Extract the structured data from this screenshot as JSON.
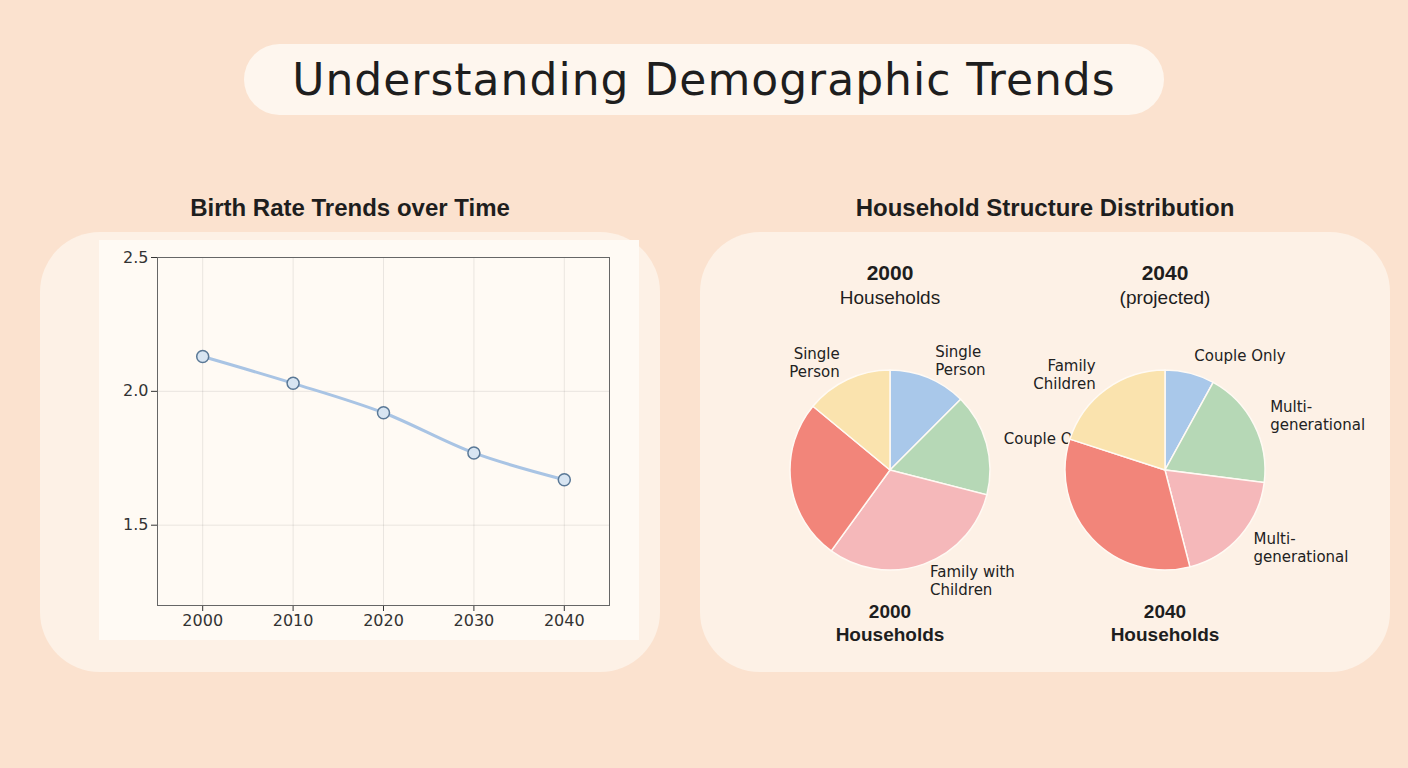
{
  "title": "Understanding Demographic Trends",
  "section_title": "Household Structure Distribution",
  "chart_data": [
    {
      "type": "line",
      "title": "Birth Rate Trends over Time",
      "x": [
        2000,
        2010,
        2020,
        2030,
        2040
      ],
      "values": [
        2.13,
        2.03,
        1.92,
        1.77,
        1.67
      ],
      "color": "#a9c4e4",
      "marker": "circle",
      "xlim": [
        1995,
        2045
      ],
      "xticks": [
        2000,
        2010,
        2020,
        2030,
        2040
      ],
      "ylim": [
        1.2,
        2.5
      ],
      "yticks": [
        1.5,
        {
          "value": 2,
          "label": "2.0"
        },
        2.5
      ],
      "grid": true
    },
    {
      "type": "pie",
      "title": "2000 Households",
      "caption": "2000 Households",
      "categories": [
        "Single Person",
        "Couple Only",
        "Family with Children",
        null,
        "Single Person"
      ],
      "values": [
        12.5,
        16.5,
        31,
        26,
        14
      ],
      "colors": [
        "#a9c8ea",
        "#b6d8b6",
        "#f5b8ba",
        "#f2857a",
        "#fae3ae"
      ]
    },
    {
      "type": "pie",
      "title": "2040 (projected)",
      "caption": "2040 Households",
      "categories": [
        "Couple Only",
        "Multi-generational",
        "Multi-generational",
        null,
        "Family Children"
      ],
      "values": [
        8,
        19,
        19,
        34,
        20
      ],
      "colors": [
        "#a9c8ea",
        "#b6d8b6",
        "#f5b8ba",
        "#f2857a",
        "#fae3ae"
      ]
    }
  ]
}
